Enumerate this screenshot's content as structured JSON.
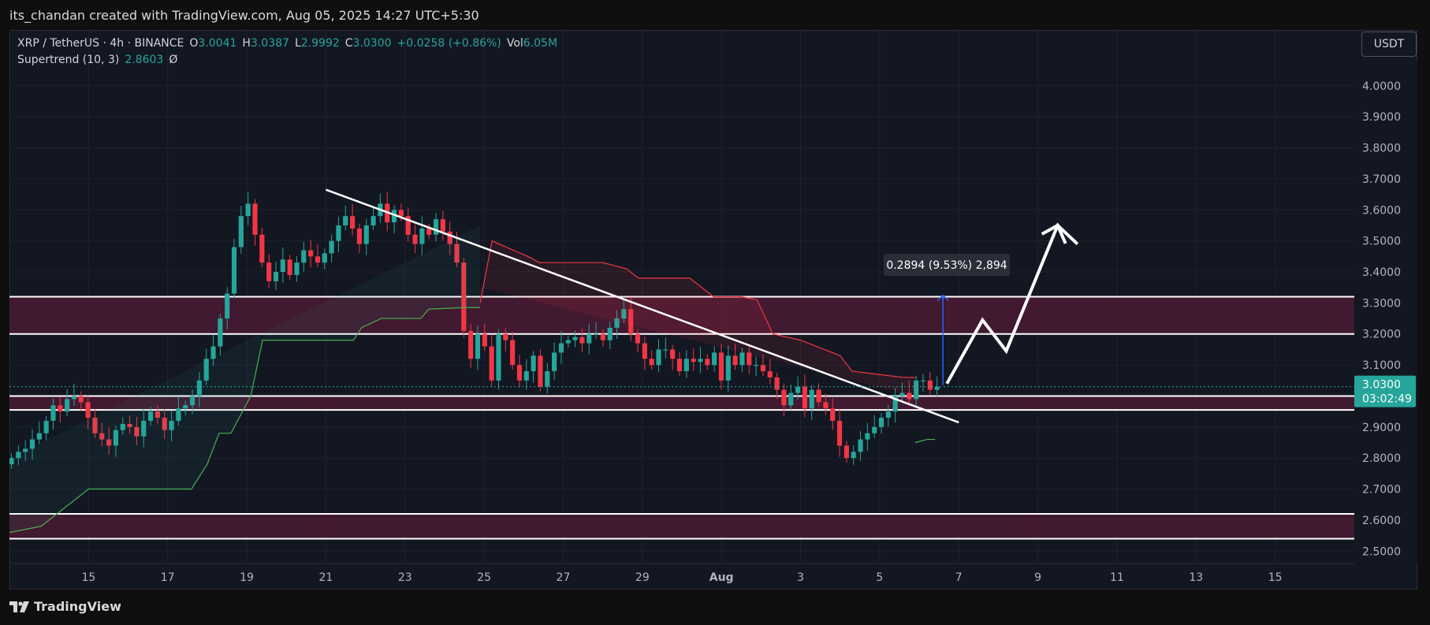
{
  "caption": "its_chandan created with TradingView.com, Aug 05, 2025 14:27 UTC+5:30",
  "brand": "TradingView",
  "currency_button": "USDT",
  "legend": {
    "symbol": "XRP / TetherUS · 4h · BINANCE",
    "open_label": "O",
    "open": "3.0041",
    "high_label": "H",
    "high": "3.0387",
    "low_label": "L",
    "low": "2.9992",
    "close_label": "C",
    "close": "3.0300",
    "change": "+0.0258 (+0.86%)",
    "vol_label": "Vol",
    "vol": "6.05M",
    "indicator": "Supertrend (10, 3)",
    "indicator_value": "2.8603",
    "indicator_icon": "Ø"
  },
  "colors": {
    "up": "#26a69a",
    "down": "#f23645",
    "bg": "#131722",
    "zone": "#4a1a33",
    "supertrend_up": "#4caf50",
    "supertrend_down": "#f23645",
    "measure": "#2962ff"
  },
  "chart_data": {
    "type": "candlestick",
    "y_axis": {
      "ticks": [
        "4.0000",
        "3.9000",
        "3.8000",
        "3.7000",
        "3.6000",
        "3.5000",
        "3.4000",
        "3.3000",
        "3.2000",
        "3.1000",
        "3.0000",
        "2.9000",
        "2.8000",
        "2.7000",
        "2.6000",
        "2.5000"
      ],
      "range": [
        2.46,
        4.18
      ]
    },
    "x_axis": {
      "ticks": [
        "15",
        "17",
        "19",
        "21",
        "23",
        "25",
        "27",
        "29",
        "Aug",
        "3",
        "5",
        "7",
        "9",
        "11",
        "13",
        "15"
      ],
      "range_days": [
        "Jul 13",
        "Aug 16"
      ]
    },
    "last_price": {
      "value": "3.0300",
      "countdown": "03:02:49"
    },
    "zones": [
      {
        "from": 3.2,
        "to": 3.32
      },
      {
        "from": 2.955,
        "to": 3.0
      },
      {
        "from": 2.54,
        "to": 2.62
      }
    ],
    "trendline": {
      "from": {
        "date": "Jul 21",
        "price": 3.665
      },
      "to": {
        "date": "Aug 6",
        "price": 2.915
      }
    },
    "measure": {
      "label": "0.2894 (9.53%) 2,894",
      "from": 3.035,
      "to": 3.325
    },
    "projection": [
      3.04,
      3.245,
      3.145,
      3.55,
      3.49
    ],
    "close_series": [
      2.8,
      2.82,
      2.83,
      2.86,
      2.88,
      2.92,
      2.97,
      2.95,
      2.99,
      3.0,
      2.98,
      2.93,
      2.88,
      2.86,
      2.84,
      2.89,
      2.91,
      2.9,
      2.87,
      2.92,
      2.95,
      2.93,
      2.89,
      2.92,
      2.96,
      2.97,
      3.0,
      3.05,
      3.12,
      3.16,
      3.25,
      3.33,
      3.48,
      3.58,
      3.62,
      3.52,
      3.43,
      3.37,
      3.4,
      3.44,
      3.39,
      3.43,
      3.47,
      3.45,
      3.43,
      3.46,
      3.5,
      3.55,
      3.58,
      3.54,
      3.49,
      3.55,
      3.58,
      3.62,
      3.56,
      3.6,
      3.58,
      3.52,
      3.49,
      3.54,
      3.52,
      3.57,
      3.53,
      3.49,
      3.43,
      3.21,
      3.12,
      3.2,
      3.16,
      3.05,
      3.2,
      3.18,
      3.1,
      3.05,
      3.08,
      3.13,
      3.03,
      3.08,
      3.14,
      3.17,
      3.18,
      3.19,
      3.17,
      3.2,
      3.2,
      3.18,
      3.22,
      3.25,
      3.28,
      3.2,
      3.17,
      3.12,
      3.1,
      3.15,
      3.15,
      3.12,
      3.08,
      3.12,
      3.11,
      3.12,
      3.1,
      3.14,
      3.05,
      3.13,
      3.1,
      3.14,
      3.1,
      3.1,
      3.08,
      3.06,
      3.02,
      2.97,
      3.01,
      3.03,
      2.96,
      3.02,
      2.98,
      2.96,
      2.92,
      2.84,
      2.8,
      2.82,
      2.86,
      2.88,
      2.9,
      2.93,
      2.95,
      3.0,
      3.01,
      2.99,
      3.05,
      3.05,
      3.02,
      3.03
    ]
  }
}
